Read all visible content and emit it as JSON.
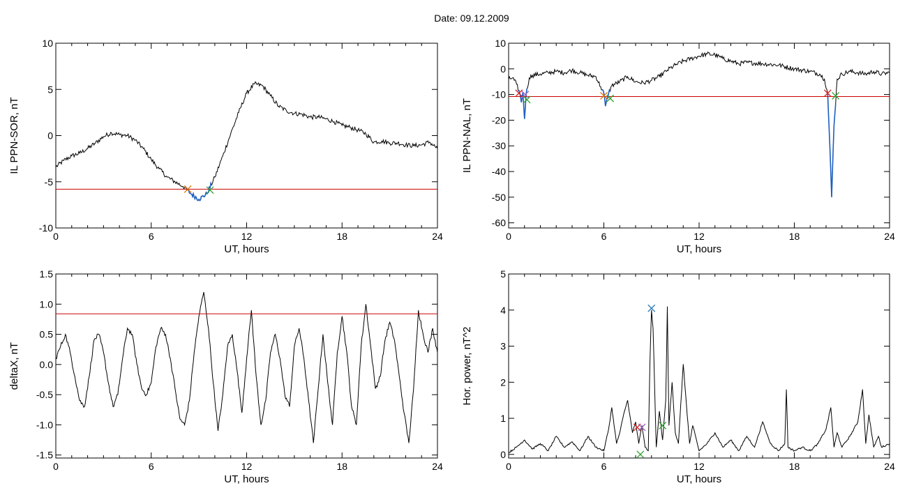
{
  "title": "Date:  09.12.2009",
  "colors": {
    "threshold": "#cc0000",
    "data": "#000000",
    "highlight": "#1f5fbf",
    "marker_orange": "#e07000",
    "marker_green": "#2ca02c",
    "marker_red": "#d62728",
    "marker_blue": "#1f77b4",
    "marker_purple": "#9467bd"
  },
  "chart_data": [
    {
      "type": "line",
      "xlabel": "UT, hours",
      "ylabel": "IL PPN-SOR, nT",
      "xlim": [
        0,
        24
      ],
      "ylim": [
        -10,
        10
      ],
      "xticks": [
        0,
        6,
        12,
        18,
        24
      ],
      "yticks": [
        -10,
        -5,
        0,
        5,
        10
      ],
      "threshold": -5.8,
      "series": [
        {
          "x": [
            0,
            0.5,
            1,
            1.5,
            2,
            2.5,
            3,
            3.5,
            4,
            4.5,
            5,
            5.5,
            6,
            6.5,
            7,
            7.5,
            8,
            8.5,
            9,
            9.5,
            10,
            10.5,
            11,
            11.5,
            12,
            12.5,
            13,
            13.5,
            14,
            14.5,
            15,
            15.5,
            16,
            16.5,
            17,
            17.5,
            18,
            18.5,
            19,
            19.5,
            20,
            20.5,
            21,
            21.5,
            22,
            22.5,
            23,
            23.5,
            24
          ],
          "y": [
            -3.4,
            -2.7,
            -2.2,
            -1.9,
            -1.4,
            -0.8,
            -0.1,
            0.3,
            0.1,
            0.0,
            -0.5,
            -1.4,
            -2.6,
            -3.6,
            -4.5,
            -5.0,
            -5.5,
            -6.3,
            -6.9,
            -6.3,
            -4.5,
            -2.2,
            0.2,
            2.5,
            4.6,
            5.6,
            5.4,
            4.3,
            3.2,
            2.7,
            2.4,
            2.3,
            2.0,
            2.0,
            1.8,
            1.5,
            1.1,
            0.9,
            0.6,
            0.2,
            -0.7,
            -0.6,
            -0.8,
            -0.8,
            -1.0,
            -1.1,
            -1.0,
            -0.7,
            -1.4
          ]
        }
      ],
      "highlight_range": [
        8.2,
        9.8
      ],
      "markers": [
        {
          "x": 8.3,
          "y": -5.8,
          "color": "orange"
        },
        {
          "x": 9.7,
          "y": -5.9,
          "color": "green"
        }
      ]
    },
    {
      "type": "line",
      "xlabel": "UT, hours",
      "ylabel": "IL PPN-NAL, nT",
      "xlim": [
        0,
        24
      ],
      "ylim": [
        -62,
        10
      ],
      "xticks": [
        0,
        6,
        12,
        18,
        24
      ],
      "yticks": [
        -60,
        -50,
        -40,
        -30,
        -20,
        -10,
        0,
        10
      ],
      "threshold": -10.8,
      "series": [
        {
          "x": [
            0,
            0.25,
            0.5,
            0.7,
            0.8,
            0.9,
            1.0,
            1.1,
            1.3,
            1.5,
            2.0,
            2.5,
            3,
            3.5,
            4,
            4.5,
            5,
            5.5,
            5.8,
            6.0,
            6.1,
            6.3,
            6.5,
            7,
            7.5,
            8,
            8.5,
            9,
            9.5,
            10,
            10.5,
            11,
            11.5,
            12,
            12.5,
            13,
            13.5,
            14,
            14.5,
            15,
            16,
            17,
            18,
            19,
            19.6,
            19.9,
            20.1,
            20.25,
            20.35,
            20.5,
            20.7,
            21,
            21.5,
            22,
            22.5,
            23,
            23.5,
            24
          ],
          "y": [
            -4,
            -3.5,
            -6,
            -9.5,
            -13,
            -9,
            -19.5,
            -10,
            -3.5,
            -2.5,
            -2.0,
            -1.5,
            -1.0,
            -1.5,
            -0.5,
            -1.5,
            -2.5,
            -3.0,
            -7.0,
            -9.5,
            -14.5,
            -9.5,
            -6.5,
            -5.0,
            -3.0,
            -5.0,
            -5.5,
            -4.5,
            -3.0,
            -0.5,
            1.5,
            3.0,
            4.0,
            5.0,
            5.8,
            5.5,
            4.0,
            3.0,
            2.0,
            2.5,
            2.0,
            1.5,
            0.0,
            -1.0,
            -2.0,
            -4.0,
            -9.5,
            -32,
            -50,
            -22,
            -4.0,
            -2.0,
            -1.0,
            -1.5,
            -2.0,
            -1.0,
            -2.0,
            -1.5
          ]
        }
      ],
      "highlight_ranges": [
        [
          0.6,
          1.2
        ],
        [
          5.9,
          6.4
        ],
        [
          20.1,
          20.6
        ]
      ],
      "markers": [
        {
          "x": 0.65,
          "y": -9.5,
          "color": "red"
        },
        {
          "x": 1.05,
          "y": -10.0,
          "color": "purple"
        },
        {
          "x": 1.15,
          "y": -12.0,
          "color": "green"
        },
        {
          "x": 6.0,
          "y": -10.5,
          "color": "orange"
        },
        {
          "x": 6.4,
          "y": -11.5,
          "color": "green"
        },
        {
          "x": 20.1,
          "y": -9.5,
          "color": "red"
        },
        {
          "x": 20.6,
          "y": -10.5,
          "color": "green"
        }
      ]
    },
    {
      "type": "line",
      "xlabel": "UT, hours",
      "ylabel": "deltaX, nT",
      "xlim": [
        0,
        24
      ],
      "ylim": [
        -1.55,
        1.5
      ],
      "xticks": [
        0,
        6,
        12,
        18,
        24
      ],
      "yticks": [
        -1.5,
        -1.0,
        -0.5,
        0.0,
        0.5,
        1.0,
        1.5
      ],
      "ytick_labels": [
        "-1.5",
        "-1.0",
        "-0.5",
        "0.0",
        "0.5",
        "1.0",
        "1.5"
      ],
      "threshold": 0.84,
      "series": [
        {
          "x": [
            0,
            0.3,
            0.6,
            0.9,
            1.2,
            1.5,
            1.8,
            2.1,
            2.4,
            2.7,
            3.0,
            3.3,
            3.6,
            3.9,
            4.2,
            4.5,
            4.8,
            5.1,
            5.4,
            5.7,
            6.0,
            6.3,
            6.6,
            6.9,
            7.2,
            7.5,
            7.8,
            8.1,
            8.4,
            8.7,
            9.0,
            9.3,
            9.6,
            9.9,
            10.2,
            10.5,
            10.8,
            11.1,
            11.4,
            11.7,
            12.0,
            12.3,
            12.6,
            12.9,
            13.2,
            13.5,
            13.8,
            14.1,
            14.4,
            14.7,
            15.0,
            15.3,
            15.6,
            15.9,
            16.2,
            16.5,
            16.8,
            17.1,
            17.4,
            17.7,
            18.0,
            18.3,
            18.6,
            18.9,
            19.2,
            19.5,
            19.8,
            20.1,
            20.4,
            20.7,
            21.0,
            21.3,
            21.6,
            21.9,
            22.2,
            22.5,
            22.8,
            23.1,
            23.4,
            23.7,
            24.0
          ],
          "y": [
            0.1,
            0.3,
            0.5,
            0.2,
            -0.2,
            -0.6,
            -0.7,
            -0.2,
            0.4,
            0.5,
            0.2,
            -0.3,
            -0.7,
            -0.5,
            0.1,
            0.6,
            0.5,
            0.0,
            -0.4,
            -0.5,
            -0.3,
            0.3,
            0.6,
            0.5,
            0.1,
            -0.4,
            -0.9,
            -1.0,
            -0.6,
            0.2,
            0.8,
            1.2,
            0.6,
            -0.3,
            -1.1,
            -0.5,
            0.3,
            0.5,
            -0.1,
            -0.8,
            0.1,
            0.9,
            -0.2,
            -1.0,
            -0.6,
            0.2,
            0.5,
            0.1,
            -0.5,
            -0.7,
            0.3,
            0.6,
            0.1,
            -0.6,
            -1.3,
            -0.4,
            0.5,
            -0.3,
            -1.0,
            0.2,
            0.8,
            0.2,
            -0.7,
            -1.0,
            0.3,
            1.0,
            0.3,
            -0.4,
            -0.2,
            0.4,
            0.7,
            0.4,
            -0.2,
            -0.8,
            -1.3,
            -0.4,
            0.9,
            0.5,
            0.2,
            0.6,
            0.2
          ]
        }
      ]
    },
    {
      "type": "line",
      "xlabel": "UT, hours",
      "ylabel": "Hor. power, nT^2",
      "xlim": [
        0,
        24
      ],
      "ylim": [
        -0.1,
        5
      ],
      "xticks": [
        0,
        6,
        12,
        18,
        24
      ],
      "yticks": [
        0,
        1,
        2,
        3,
        4,
        5
      ],
      "series": [
        {
          "x": [
            0,
            0.5,
            1.0,
            1.5,
            2.0,
            2.5,
            3.0,
            3.5,
            4.0,
            4.5,
            5.0,
            5.5,
            6.0,
            6.3,
            6.5,
            6.8,
            7.0,
            7.3,
            7.5,
            7.8,
            8.0,
            8.2,
            8.4,
            8.6,
            8.8,
            8.9,
            9.0,
            9.1,
            9.3,
            9.5,
            9.7,
            9.9,
            10.0,
            10.1,
            10.3,
            10.5,
            10.7,
            11.0,
            11.2,
            11.4,
            11.6,
            12.0,
            12.5,
            13.0,
            13.5,
            14.0,
            14.5,
            15.0,
            15.5,
            16.0,
            16.5,
            17.0,
            17.4,
            17.5,
            17.6,
            18.0,
            18.5,
            19.0,
            19.5,
            20.0,
            20.3,
            20.5,
            20.7,
            21.0,
            21.5,
            22.0,
            22.3,
            22.5,
            22.7,
            23.0,
            23.3,
            23.5,
            24.0
          ],
          "y": [
            0.05,
            0.2,
            0.4,
            0.15,
            0.3,
            0.1,
            0.5,
            0.2,
            0.35,
            0.1,
            0.5,
            0.2,
            0.1,
            0.7,
            1.3,
            0.3,
            0.6,
            1.2,
            1.5,
            0.6,
            0.9,
            0.3,
            0.8,
            0.2,
            0.1,
            2.5,
            4.0,
            3.5,
            0.2,
            1.2,
            0.4,
            1.5,
            4.1,
            0.8,
            2.0,
            0.6,
            0.3,
            2.5,
            1.4,
            0.3,
            0.8,
            0.1,
            0.3,
            0.6,
            0.2,
            0.4,
            0.1,
            0.5,
            0.2,
            0.9,
            0.3,
            0.1,
            0.3,
            1.8,
            0.2,
            0.1,
            0.2,
            0.1,
            0.3,
            0.7,
            1.3,
            0.2,
            0.6,
            0.2,
            0.5,
            0.9,
            1.8,
            0.3,
            1.1,
            0.2,
            0.5,
            0.2,
            0.3
          ]
        }
      ],
      "markers": [
        {
          "x": 8.1,
          "y": 0.75,
          "color": "red"
        },
        {
          "x": 8.4,
          "y": 0.75,
          "color": "purple"
        },
        {
          "x": 9.0,
          "y": 4.05,
          "color": "blue"
        },
        {
          "x": 8.3,
          "y": 0.0,
          "color": "green"
        },
        {
          "x": 9.7,
          "y": 0.8,
          "color": "green"
        }
      ]
    }
  ]
}
